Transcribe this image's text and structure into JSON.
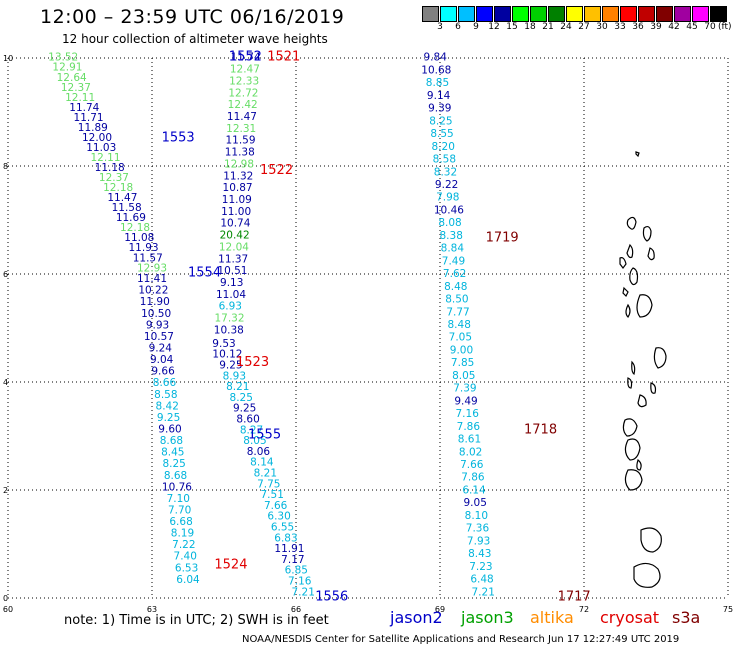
{
  "title": "12:00 – 23:59 UTC 06/16/2019",
  "subtitle": "12 hour collection of altimeter wave heights",
  "scale": {
    "colors": [
      "#808080",
      "#00ffff",
      "#00bfff",
      "#0000ff",
      "#0000a0",
      "#00ff00",
      "#00d000",
      "#008000",
      "#ffff00",
      "#ffc000",
      "#ff8000",
      "#ff0000",
      "#c00000",
      "#800000",
      "#a000a0",
      "#ff00ff",
      "#000000"
    ],
    "labels": [
      "3",
      "6",
      "9",
      "12",
      "15",
      "18",
      "21",
      "24",
      "27",
      "30",
      "33",
      "36",
      "39",
      "42",
      "45",
      "70"
    ],
    "unit": "(ft)"
  },
  "map": {
    "x_ticks": [
      "60",
      "63",
      "66",
      "69",
      "72",
      "75"
    ],
    "y_ticks": [
      "0",
      "2",
      "4",
      "6",
      "8",
      "10"
    ],
    "lon_range": [
      60,
      75
    ],
    "lat_range": [
      0,
      10
    ]
  },
  "colors": {
    "jason2": "#0000c8",
    "jason3": "#00a000",
    "altika": "#ff8c00",
    "cryosat": "#e00000",
    "s3a": "#800000",
    "lightgreen": "#66dd66",
    "cyan": "#00b4dc",
    "navy": "#0000a0",
    "green": "#008800"
  },
  "passes": [
    {
      "label": "1552",
      "color": "jason2",
      "lon": 64.6,
      "lat": 9.95
    },
    {
      "label": "1553",
      "color": "jason2",
      "lon": 63.2,
      "lat": 8.45
    },
    {
      "label": "1554",
      "color": "jason2",
      "lon": 63.75,
      "lat": 5.95
    },
    {
      "label": "1555",
      "color": "jason2",
      "lon": 65.0,
      "lat": 2.95
    },
    {
      "label": "1556",
      "color": "jason2",
      "lon": 66.4,
      "lat": -0.05
    },
    {
      "label": "1521",
      "color": "cryosat",
      "lon": 65.4,
      "lat": 9.95
    },
    {
      "label": "1522",
      "color": "cryosat",
      "lon": 65.25,
      "lat": 7.85
    },
    {
      "label": "1523",
      "color": "cryosat",
      "lon": 64.75,
      "lat": 4.3
    },
    {
      "label": "1524",
      "color": "cryosat",
      "lon": 64.3,
      "lat": 0.55
    },
    {
      "label": "1719",
      "color": "s3a",
      "lon": 69.95,
      "lat": 6.6
    },
    {
      "label": "1718",
      "color": "s3a",
      "lon": 70.75,
      "lat": 3.05
    },
    {
      "label": "1717",
      "color": "s3a",
      "lon": 71.45,
      "lat": -0.05
    }
  ],
  "tracks": [
    {
      "start": [
        61.15,
        9.95
      ],
      "end": [
        63.0,
        6.05
      ],
      "values": [
        "13.52",
        "12.91",
        "12.64",
        "12.37",
        "12.11",
        "11.74",
        "11.71",
        "11.89",
        "12.00",
        "11.03",
        "12.11",
        "11.18",
        "12.37",
        "12.18",
        "11.47",
        "11.58",
        "11.69",
        "12.18",
        "11.08",
        "11.93",
        "11.57",
        "12.93"
      ],
      "colors": [
        "lightgreen",
        "lightgreen",
        "lightgreen",
        "lightgreen",
        "lightgreen",
        "navy",
        "navy",
        "navy",
        "navy",
        "navy",
        "lightgreen",
        "navy",
        "lightgreen",
        "lightgreen",
        "navy",
        "navy",
        "navy",
        "lightgreen",
        "navy",
        "navy",
        "navy",
        "lightgreen"
      ]
    },
    {
      "start": [
        63.0,
        5.85
      ],
      "end": [
        63.75,
        0.28
      ],
      "values": [
        "11.41",
        "10.22",
        "11.90",
        "10.50",
        "9.93",
        "10.57",
        "9.24",
        "9.04",
        "9.66",
        "8.66",
        "8.58",
        "8.42",
        "9.25",
        "9.60",
        "8.68",
        "8.45",
        "8.25",
        "8.68",
        "10.76",
        "7.10",
        "7.70",
        "6.68",
        "8.19",
        "7.22",
        "7.40",
        "6.53",
        "6.04"
      ],
      "colors": [
        "navy",
        "navy",
        "navy",
        "navy",
        "navy",
        "navy",
        "navy",
        "navy",
        "navy",
        "cyan",
        "cyan",
        "cyan",
        "cyan",
        "navy",
        "cyan",
        "cyan",
        "cyan",
        "cyan",
        "navy",
        "cyan",
        "cyan",
        "cyan",
        "cyan",
        "cyan",
        "cyan",
        "cyan",
        "cyan"
      ]
    },
    {
      "start": [
        64.95,
        9.95
      ],
      "end": [
        64.6,
        4.9
      ],
      "values": [
        "11.74",
        "12.47",
        "12.33",
        "12.72",
        "12.42",
        "11.47",
        "12.31",
        "11.59",
        "11.38",
        "12.98",
        "11.32",
        "10.87",
        "11.09",
        "11.00",
        "10.74",
        "20.42",
        "12.04",
        "11.37",
        "10.51",
        "9.13",
        "11.04",
        "6.93",
        "17.32",
        "10.38"
      ],
      "colors": [
        "navy",
        "lightgreen",
        "lightgreen",
        "lightgreen",
        "lightgreen",
        "navy",
        "lightgreen",
        "navy",
        "navy",
        "lightgreen",
        "navy",
        "navy",
        "navy",
        "navy",
        "navy",
        "green",
        "lightgreen",
        "navy",
        "navy",
        "navy",
        "navy",
        "cyan",
        "lightgreen",
        "navy"
      ]
    },
    {
      "start": [
        64.5,
        4.65
      ],
      "end": [
        66.15,
        0.05
      ],
      "values": [
        "9.53",
        "10.12",
        "9.25",
        "8.93",
        "8.21",
        "8.25",
        "9.25",
        "8.60",
        "8.27",
        "8.05",
        "8.06",
        "8.14",
        "8.21",
        "7.75",
        "7.51",
        "7.66",
        "6.30",
        "6.55",
        "6.83",
        "11.91",
        "7.17",
        "6.85",
        "7.16",
        "7.21"
      ],
      "colors": [
        "navy",
        "navy",
        "navy",
        "cyan",
        "cyan",
        "cyan",
        "navy",
        "navy",
        "cyan",
        "cyan",
        "navy",
        "cyan",
        "cyan",
        "cyan",
        "cyan",
        "cyan",
        "cyan",
        "cyan",
        "cyan",
        "navy",
        "navy",
        "cyan",
        "cyan",
        "cyan"
      ]
    },
    {
      "start": [
        68.9,
        9.95
      ],
      "end": [
        69.9,
        0.05
      ],
      "values": [
        "9.84",
        "10.68",
        "8.85",
        "9.14",
        "9.39",
        "8.25",
        "8.55",
        "8.20",
        "8.58",
        "8.32",
        "9.22",
        "7.98",
        "10.46",
        "8.08",
        "8.38",
        "8.84",
        "7.49",
        "7.62",
        "8.48",
        "8.50",
        "7.77",
        "8.48",
        "7.05",
        "9.00",
        "7.85",
        "8.05",
        "7.39",
        "9.49",
        "7.16",
        "7.86",
        "8.61",
        "8.02",
        "7.66",
        "7.86",
        "6.14",
        "9.05",
        "8.10",
        "7.36",
        "7.93",
        "8.43",
        "7.23",
        "6.48",
        "7.21"
      ],
      "colors": [
        "navy",
        "navy",
        "cyan",
        "navy",
        "navy",
        "cyan",
        "cyan",
        "cyan",
        "cyan",
        "cyan",
        "navy",
        "cyan",
        "navy",
        "cyan",
        "cyan",
        "cyan",
        "cyan",
        "cyan",
        "cyan",
        "cyan",
        "cyan",
        "cyan",
        "cyan",
        "cyan",
        "cyan",
        "cyan",
        "cyan",
        "navy",
        "cyan",
        "cyan",
        "cyan",
        "cyan",
        "cyan",
        "cyan",
        "cyan",
        "navy",
        "cyan",
        "cyan",
        "cyan",
        "cyan",
        "cyan",
        "cyan",
        "cyan"
      ]
    }
  ],
  "note": "note:  1) Time is in UTC;  2) SWH is in feet",
  "legend": [
    {
      "label": "jason2",
      "color": "jason2"
    },
    {
      "label": "jason3",
      "color": "jason3"
    },
    {
      "label": "altika",
      "color": "altika"
    },
    {
      "label": "cryosat",
      "color": "cryosat"
    },
    {
      "label": "s3a",
      "color": "s3a"
    }
  ],
  "credit": "NOAA/NESDIS Center for Satellite Applications and Research    Jun 17 12:27:49 UTC 2019"
}
